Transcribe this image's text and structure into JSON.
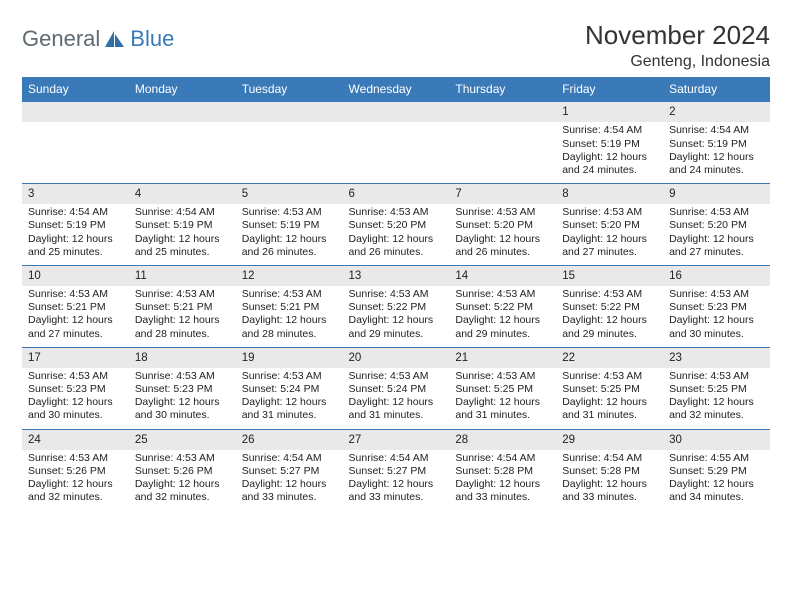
{
  "brand": {
    "left": "General",
    "right": "Blue"
  },
  "title": "November 2024",
  "location": "Genteng, Indonesia",
  "colors": {
    "header_bg": "#3a7ab8",
    "header_text": "#ffffff",
    "daynum_bg": "#e9e9e9",
    "row_border": "#3a7ab8",
    "page_bg": "#ffffff",
    "text": "#222222",
    "logo_gray": "#5e6a72"
  },
  "day_names": [
    "Sunday",
    "Monday",
    "Tuesday",
    "Wednesday",
    "Thursday",
    "Friday",
    "Saturday"
  ],
  "weeks": [
    [
      null,
      null,
      null,
      null,
      null,
      {
        "n": "1",
        "sr": "4:54 AM",
        "ss": "5:19 PM",
        "dl": "12 hours and 24 minutes."
      },
      {
        "n": "2",
        "sr": "4:54 AM",
        "ss": "5:19 PM",
        "dl": "12 hours and 24 minutes."
      }
    ],
    [
      {
        "n": "3",
        "sr": "4:54 AM",
        "ss": "5:19 PM",
        "dl": "12 hours and 25 minutes."
      },
      {
        "n": "4",
        "sr": "4:54 AM",
        "ss": "5:19 PM",
        "dl": "12 hours and 25 minutes."
      },
      {
        "n": "5",
        "sr": "4:53 AM",
        "ss": "5:19 PM",
        "dl": "12 hours and 26 minutes."
      },
      {
        "n": "6",
        "sr": "4:53 AM",
        "ss": "5:20 PM",
        "dl": "12 hours and 26 minutes."
      },
      {
        "n": "7",
        "sr": "4:53 AM",
        "ss": "5:20 PM",
        "dl": "12 hours and 26 minutes."
      },
      {
        "n": "8",
        "sr": "4:53 AM",
        "ss": "5:20 PM",
        "dl": "12 hours and 27 minutes."
      },
      {
        "n": "9",
        "sr": "4:53 AM",
        "ss": "5:20 PM",
        "dl": "12 hours and 27 minutes."
      }
    ],
    [
      {
        "n": "10",
        "sr": "4:53 AM",
        "ss": "5:21 PM",
        "dl": "12 hours and 27 minutes."
      },
      {
        "n": "11",
        "sr": "4:53 AM",
        "ss": "5:21 PM",
        "dl": "12 hours and 28 minutes."
      },
      {
        "n": "12",
        "sr": "4:53 AM",
        "ss": "5:21 PM",
        "dl": "12 hours and 28 minutes."
      },
      {
        "n": "13",
        "sr": "4:53 AM",
        "ss": "5:22 PM",
        "dl": "12 hours and 29 minutes."
      },
      {
        "n": "14",
        "sr": "4:53 AM",
        "ss": "5:22 PM",
        "dl": "12 hours and 29 minutes."
      },
      {
        "n": "15",
        "sr": "4:53 AM",
        "ss": "5:22 PM",
        "dl": "12 hours and 29 minutes."
      },
      {
        "n": "16",
        "sr": "4:53 AM",
        "ss": "5:23 PM",
        "dl": "12 hours and 30 minutes."
      }
    ],
    [
      {
        "n": "17",
        "sr": "4:53 AM",
        "ss": "5:23 PM",
        "dl": "12 hours and 30 minutes."
      },
      {
        "n": "18",
        "sr": "4:53 AM",
        "ss": "5:23 PM",
        "dl": "12 hours and 30 minutes."
      },
      {
        "n": "19",
        "sr": "4:53 AM",
        "ss": "5:24 PM",
        "dl": "12 hours and 31 minutes."
      },
      {
        "n": "20",
        "sr": "4:53 AM",
        "ss": "5:24 PM",
        "dl": "12 hours and 31 minutes."
      },
      {
        "n": "21",
        "sr": "4:53 AM",
        "ss": "5:25 PM",
        "dl": "12 hours and 31 minutes."
      },
      {
        "n": "22",
        "sr": "4:53 AM",
        "ss": "5:25 PM",
        "dl": "12 hours and 31 minutes."
      },
      {
        "n": "23",
        "sr": "4:53 AM",
        "ss": "5:25 PM",
        "dl": "12 hours and 32 minutes."
      }
    ],
    [
      {
        "n": "24",
        "sr": "4:53 AM",
        "ss": "5:26 PM",
        "dl": "12 hours and 32 minutes."
      },
      {
        "n": "25",
        "sr": "4:53 AM",
        "ss": "5:26 PM",
        "dl": "12 hours and 32 minutes."
      },
      {
        "n": "26",
        "sr": "4:54 AM",
        "ss": "5:27 PM",
        "dl": "12 hours and 33 minutes."
      },
      {
        "n": "27",
        "sr": "4:54 AM",
        "ss": "5:27 PM",
        "dl": "12 hours and 33 minutes."
      },
      {
        "n": "28",
        "sr": "4:54 AM",
        "ss": "5:28 PM",
        "dl": "12 hours and 33 minutes."
      },
      {
        "n": "29",
        "sr": "4:54 AM",
        "ss": "5:28 PM",
        "dl": "12 hours and 33 minutes."
      },
      {
        "n": "30",
        "sr": "4:55 AM",
        "ss": "5:29 PM",
        "dl": "12 hours and 34 minutes."
      }
    ]
  ],
  "labels": {
    "sunrise": "Sunrise:",
    "sunset": "Sunset:",
    "daylight": "Daylight:"
  }
}
